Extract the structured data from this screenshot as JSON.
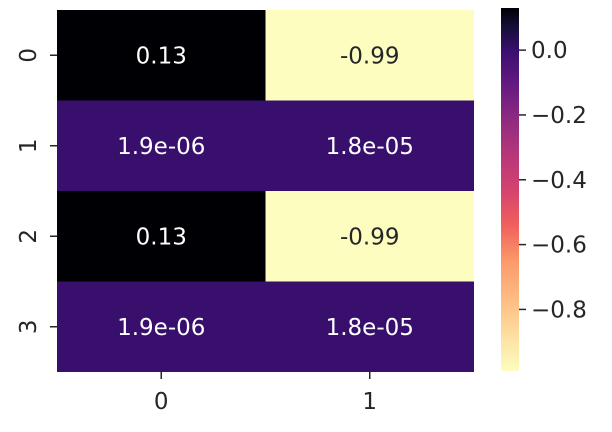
{
  "chart_data": {
    "type": "heatmap",
    "title": "",
    "xlabel": "",
    "ylabel": "",
    "x_categories": [
      "0",
      "1"
    ],
    "y_categories": [
      "0",
      "1",
      "2",
      "3"
    ],
    "values": [
      [
        0.13,
        -0.99
      ],
      [
        1.9e-06,
        1.8e-05
      ],
      [
        0.13,
        -0.99
      ],
      [
        1.9e-06,
        1.8e-05
      ]
    ],
    "annotations": [
      [
        "0.13",
        "-0.99"
      ],
      [
        "1.9e-06",
        "1.8e-05"
      ],
      [
        "0.13",
        "-0.99"
      ],
      [
        "1.9e-06",
        "1.8e-05"
      ]
    ],
    "colormap": "magma_r",
    "colorbar": {
      "vmin": -0.99,
      "vmax": 0.13,
      "ticks": [
        0.0,
        -0.2,
        -0.4,
        -0.6,
        -0.8
      ],
      "tick_labels": [
        "0.0",
        "−0.2",
        "−0.4",
        "−0.6",
        "−0.8"
      ],
      "placement": "right"
    },
    "colors": {
      "max": "#000004",
      "near_zero": "#1a1042",
      "min": "#fcfdbf",
      "text_on_dark": "#ffffff",
      "text_on_light": "#262626"
    }
  }
}
